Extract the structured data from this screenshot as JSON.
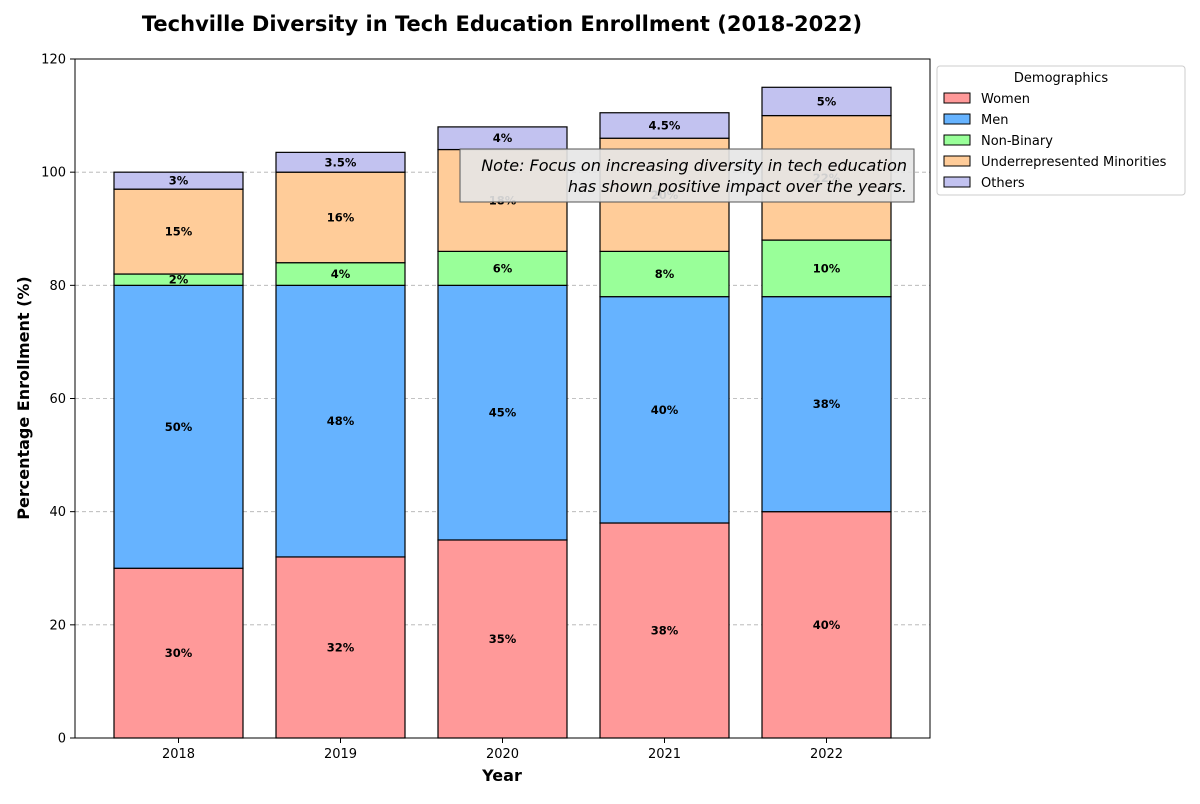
{
  "chart_data": {
    "type": "bar",
    "stacked": true,
    "title": "Techville Diversity in Tech Education Enrollment (2018-2022)",
    "xlabel": "Year",
    "ylabel": "Percentage Enrollment (%)",
    "categories": [
      "2018",
      "2019",
      "2020",
      "2021",
      "2022"
    ],
    "ylim": [
      0,
      120
    ],
    "yticks": [
      0,
      20,
      40,
      60,
      80,
      100,
      120
    ],
    "grid": "y-dashed",
    "legend": {
      "title": "Demographics",
      "placement": "outside-top-right"
    },
    "series": [
      {
        "name": "Women",
        "color": "#ff9999",
        "values": [
          30,
          32,
          35,
          38,
          40
        ],
        "labels": [
          "30%",
          "32%",
          "35%",
          "38%",
          "40%"
        ]
      },
      {
        "name": "Men",
        "color": "#66b3ff",
        "values": [
          50,
          48,
          45,
          40,
          38
        ],
        "labels": [
          "50%",
          "48%",
          "45%",
          "40%",
          "38%"
        ]
      },
      {
        "name": "Non-Binary",
        "color": "#99ff99",
        "values": [
          2,
          4,
          6,
          8,
          10
        ],
        "labels": [
          "2%",
          "4%",
          "6%",
          "8%",
          "10%"
        ]
      },
      {
        "name": "Underrepresented Minorities",
        "color": "#ffcc99",
        "values": [
          15,
          16,
          18,
          20,
          22
        ],
        "labels": [
          "15%",
          "16%",
          "18%",
          "20%",
          "22%"
        ]
      },
      {
        "name": "Others",
        "color": "#c2c2f0",
        "values": [
          3,
          3.5,
          4,
          4.5,
          5
        ],
        "labels": [
          "3%",
          "3.5%",
          "4%",
          "4.5%",
          "5%"
        ]
      }
    ],
    "annotation": {
      "lines": [
        "Note: Focus on increasing diversity in tech education",
        "has shown positive impact over the years."
      ]
    }
  }
}
